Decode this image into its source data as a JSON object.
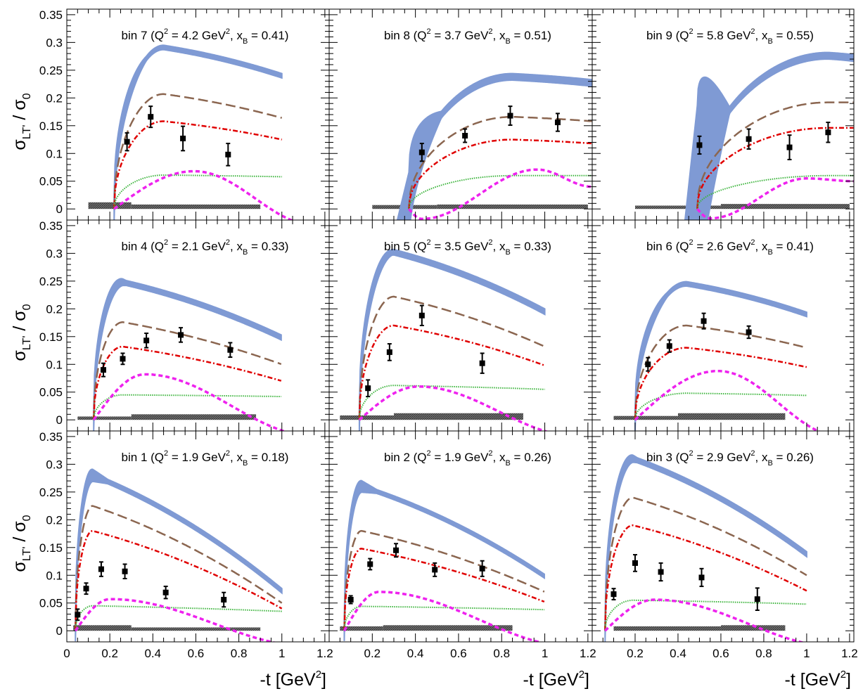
{
  "figure": {
    "ylabel_main": "σ",
    "ylabel_sub": "LT'",
    "ylabel_sep": " / σ",
    "ylabel_sub2": "0",
    "xlabel_main": "-t [GeV",
    "xlabel_sup": "2",
    "xlabel_end": "]"
  },
  "chart_data": [
    {
      "type": "line",
      "bin": "bin 7",
      "Q2": "4.2",
      "xB": "0.41",
      "title_a": "bin 7 (Q",
      "title_b": " = 4.2 GeV",
      "title_c": ", x",
      "title_d": " = 0.41)",
      "xlim": [
        0,
        1.22
      ],
      "ylim": [
        -0.02,
        0.36
      ],
      "tmin": 0.22,
      "tpeak": 0.45,
      "points": [
        {
          "t": 0.28,
          "y": 0.121,
          "err": 0.016
        },
        {
          "t": 0.39,
          "y": 0.166,
          "err": 0.019
        },
        {
          "t": 0.54,
          "y": 0.127,
          "err": 0.022
        },
        {
          "t": 0.75,
          "y": 0.098,
          "err": 0.02
        }
      ],
      "model_band": {
        "peak": 0.291,
        "end": 0.24,
        "w": 0.008,
        "tip_w": 0.012
      },
      "model_dashed": {
        "peak": 0.207,
        "end": 0.164
      },
      "model_dashdot": {
        "peak": 0.158,
        "end": 0.125
      },
      "model_dotted": {
        "peak": 0.061,
        "end": 0.058
      },
      "model_short": {
        "peak": 0.068,
        "end": -0.03
      },
      "syst": [
        {
          "t0": 0.1,
          "t1": 0.3,
          "h": 0.012
        },
        {
          "t0": 0.3,
          "t1": 0.9,
          "h": 0.008
        }
      ]
    },
    {
      "type": "line",
      "bin": "bin 8",
      "Q2": "3.7",
      "xB": "0.51",
      "title_a": "bin 8 (Q",
      "title_b": " = 3.7 GeV",
      "title_c": ", x",
      "title_d": " = 0.51)",
      "xlim": [
        0,
        1.22
      ],
      "ylim": [
        -0.02,
        0.36
      ],
      "tmin": 0.37,
      "tpeak": 0.85,
      "points": [
        {
          "t": 0.43,
          "y": 0.102,
          "err": 0.016
        },
        {
          "t": 0.63,
          "y": 0.132,
          "err": 0.012
        },
        {
          "t": 0.84,
          "y": 0.168,
          "err": 0.017
        },
        {
          "t": 1.06,
          "y": 0.156,
          "err": 0.016
        }
      ],
      "model_band": {
        "peak": 0.238,
        "end": 0.227,
        "w": 0.012,
        "tip_w": 0.04
      },
      "model_dashed": {
        "peak": 0.166,
        "end": 0.158
      },
      "model_dashdot": {
        "peak": 0.125,
        "end": 0.118
      },
      "model_dotted": {
        "peak": 0.06,
        "end": 0.06
      },
      "model_short": {
        "peak": 0.071,
        "end": 0.04,
        "dip": -0.018
      },
      "syst": [
        {
          "t0": 0.2,
          "t1": 0.5,
          "h": 0.007
        },
        {
          "t0": 0.5,
          "t1": 1.2,
          "h": 0.008
        }
      ]
    },
    {
      "type": "line",
      "bin": "bin 9",
      "Q2": "5.8",
      "xB": "0.55",
      "title_a": "bin 9 (Q",
      "title_b": " = 5.8 GeV",
      "title_c": ", x",
      "title_d": " = 0.55)",
      "xlim": [
        0,
        1.22
      ],
      "ylim": [
        -0.02,
        0.36
      ],
      "tmin": 0.49,
      "tpeak": 1.1,
      "points": [
        {
          "t": 0.5,
          "y": 0.115,
          "err": 0.016
        },
        {
          "t": 0.73,
          "y": 0.126,
          "err": 0.018
        },
        {
          "t": 0.92,
          "y": 0.111,
          "err": 0.022
        },
        {
          "t": 1.1,
          "y": 0.138,
          "err": 0.018
        }
      ],
      "model_band": {
        "peak": 0.276,
        "end": 0.272,
        "w": 0.012,
        "tip_w": 0.12
      },
      "model_dashed": {
        "peak": 0.192,
        "end": 0.192
      },
      "model_dashdot": {
        "peak": 0.146,
        "end": 0.146
      },
      "model_dotted": {
        "peak": 0.06,
        "end": 0.06
      },
      "model_short": {
        "peak": 0.055,
        "end": 0.05,
        "dip": -0.017
      },
      "syst": [
        {
          "t0": 0.2,
          "t1": 0.6,
          "h": 0.006
        },
        {
          "t0": 0.6,
          "t1": 1.2,
          "h": 0.009
        }
      ]
    },
    {
      "type": "line",
      "bin": "bin 4",
      "Q2": "2.1",
      "xB": "0.33",
      "title_a": "bin 4 (Q",
      "title_b": " = 2.1 GeV",
      "title_c": ", x",
      "title_d": " = 0.33)",
      "xlim": [
        0,
        1.22
      ],
      "ylim": [
        -0.02,
        0.36
      ],
      "tmin": 0.125,
      "tpeak": 0.26,
      "points": [
        {
          "t": 0.17,
          "y": 0.09,
          "err": 0.012
        },
        {
          "t": 0.26,
          "y": 0.11,
          "err": 0.01
        },
        {
          "t": 0.37,
          "y": 0.143,
          "err": 0.013
        },
        {
          "t": 0.53,
          "y": 0.153,
          "err": 0.013
        },
        {
          "t": 0.76,
          "y": 0.126,
          "err": 0.013
        }
      ],
      "model_band": {
        "peak": 0.248,
        "end": 0.148,
        "w": 0.009,
        "tip_w": 0.01
      },
      "model_dashed": {
        "peak": 0.176,
        "end": 0.1
      },
      "model_dashdot": {
        "peak": 0.132,
        "end": 0.07
      },
      "model_dotted": {
        "peak": 0.045,
        "end": 0.042
      },
      "model_short": {
        "peak": 0.082,
        "end": -0.03
      },
      "syst": [
        {
          "t0": 0.05,
          "t1": 0.3,
          "h": 0.006
        },
        {
          "t0": 0.3,
          "t1": 0.88,
          "h": 0.01
        }
      ]
    },
    {
      "type": "line",
      "bin": "bin 5",
      "Q2": "3.5",
      "xB": "0.33",
      "title_a": "bin 5 (Q",
      "title_b": " = 3.5 GeV",
      "title_c": ", x",
      "title_d": " = 0.33)",
      "xlim": [
        0,
        1.22
      ],
      "ylim": [
        -0.02,
        0.36
      ],
      "tmin": 0.14,
      "tpeak": 0.3,
      "points": [
        {
          "t": 0.18,
          "y": 0.057,
          "err": 0.015
        },
        {
          "t": 0.28,
          "y": 0.122,
          "err": 0.015
        },
        {
          "t": 0.43,
          "y": 0.188,
          "err": 0.018
        },
        {
          "t": 0.71,
          "y": 0.102,
          "err": 0.018
        }
      ],
      "model_band": {
        "peak": 0.302,
        "end": 0.195,
        "w": 0.01,
        "tip_w": 0.01
      },
      "model_dashed": {
        "peak": 0.222,
        "end": 0.132
      },
      "model_dashdot": {
        "peak": 0.17,
        "end": 0.098
      },
      "model_dotted": {
        "peak": 0.062,
        "end": 0.055
      },
      "model_short": {
        "peak": 0.06,
        "end": -0.03
      },
      "syst": [
        {
          "t0": 0.05,
          "t1": 0.3,
          "h": 0.008
        },
        {
          "t0": 0.3,
          "t1": 0.9,
          "h": 0.012
        }
      ]
    },
    {
      "type": "line",
      "bin": "bin 6",
      "Q2": "2.6",
      "xB": "0.41",
      "title_a": "bin 6 (Q",
      "title_b": " = 2.6 GeV",
      "title_c": ", x",
      "title_d": " = 0.41)",
      "xlim": [
        0,
        1.22
      ],
      "ylim": [
        -0.02,
        0.36
      ],
      "tmin": 0.2,
      "tpeak": 0.44,
      "points": [
        {
          "t": 0.26,
          "y": 0.1,
          "err": 0.012
        },
        {
          "t": 0.36,
          "y": 0.133,
          "err": 0.011
        },
        {
          "t": 0.52,
          "y": 0.178,
          "err": 0.014
        },
        {
          "t": 0.73,
          "y": 0.158,
          "err": 0.011
        }
      ],
      "model_band": {
        "peak": 0.245,
        "end": 0.19,
        "w": 0.008,
        "tip_w": 0.01
      },
      "model_dashed": {
        "peak": 0.17,
        "end": 0.13
      },
      "model_dashdot": {
        "peak": 0.13,
        "end": 0.095
      },
      "model_dotted": {
        "peak": 0.048,
        "end": 0.044
      },
      "model_short": {
        "peak": 0.088,
        "end": -0.03
      },
      "syst": [
        {
          "t0": 0.1,
          "t1": 0.4,
          "h": 0.007
        },
        {
          "t0": 0.4,
          "t1": 0.9,
          "h": 0.012
        }
      ]
    },
    {
      "type": "line",
      "bin": "bin 1",
      "Q2": "1.9",
      "xB": "0.18",
      "title_a": "bin 1 (Q",
      "title_b": " = 1.9 GeV",
      "title_c": ", x",
      "title_d": " = 0.18)",
      "xlim": [
        0,
        1.22
      ],
      "ylim": [
        -0.02,
        0.36
      ],
      "tmin": 0.04,
      "tpeak": 0.12,
      "points": [
        {
          "t": 0.05,
          "y": 0.029,
          "err": 0.01
        },
        {
          "t": 0.09,
          "y": 0.076,
          "err": 0.01
        },
        {
          "t": 0.16,
          "y": 0.111,
          "err": 0.013
        },
        {
          "t": 0.27,
          "y": 0.107,
          "err": 0.013
        },
        {
          "t": 0.46,
          "y": 0.069,
          "err": 0.011
        },
        {
          "t": 0.73,
          "y": 0.056,
          "err": 0.013
        }
      ],
      "model_band": {
        "peak": 0.28,
        "end": 0.072,
        "w": 0.008,
        "tip_w": 0.01
      },
      "model_dashed": {
        "peak": 0.225,
        "end": 0.05
      },
      "model_dashdot": {
        "peak": 0.18,
        "end": 0.04
      },
      "model_dotted": {
        "peak": 0.045,
        "end": 0.035
      },
      "model_short": {
        "peak": 0.057,
        "end": -0.03
      },
      "syst": [
        {
          "t0": 0.03,
          "t1": 0.3,
          "h": 0.01
        },
        {
          "t0": 0.3,
          "t1": 0.9,
          "h": 0.006
        }
      ]
    },
    {
      "type": "line",
      "bin": "bin 2",
      "Q2": "1.9",
      "xB": "0.26",
      "title_a": "bin 2 (Q",
      "title_b": " = 1.9 GeV",
      "title_c": ", x",
      "title_d": " = 0.26)",
      "xlim": [
        0,
        1.22
      ],
      "ylim": [
        -0.02,
        0.36
      ],
      "tmin": 0.07,
      "tpeak": 0.15,
      "points": [
        {
          "t": 0.1,
          "y": 0.056,
          "err": 0.007
        },
        {
          "t": 0.19,
          "y": 0.12,
          "err": 0.01
        },
        {
          "t": 0.31,
          "y": 0.145,
          "err": 0.012
        },
        {
          "t": 0.49,
          "y": 0.11,
          "err": 0.012
        },
        {
          "t": 0.71,
          "y": 0.112,
          "err": 0.014
        }
      ],
      "model_band": {
        "peak": 0.26,
        "end": 0.098,
        "w": 0.007,
        "tip_w": 0.01
      },
      "model_dashed": {
        "peak": 0.18,
        "end": 0.07
      },
      "model_dashdot": {
        "peak": 0.148,
        "end": 0.052
      },
      "model_dotted": {
        "peak": 0.044,
        "end": 0.038
      },
      "model_short": {
        "peak": 0.07,
        "end": -0.03
      },
      "syst": [
        {
          "t0": 0.05,
          "t1": 0.25,
          "h": 0.008
        },
        {
          "t0": 0.25,
          "t1": 0.85,
          "h": 0.01
        }
      ]
    },
    {
      "type": "line",
      "bin": "bin 3",
      "Q2": "2.9",
      "xB": "0.26",
      "title_a": "bin 3 (Q",
      "title_b": " = 2.9 GeV",
      "title_c": ", x",
      "title_d": " = 0.26)",
      "xlim": [
        0,
        1.22
      ],
      "ylim": [
        -0.02,
        0.36
      ],
      "tmin": 0.06,
      "tpeak": 0.19,
      "points": [
        {
          "t": 0.1,
          "y": 0.066,
          "err": 0.01
        },
        {
          "t": 0.2,
          "y": 0.122,
          "err": 0.015
        },
        {
          "t": 0.32,
          "y": 0.106,
          "err": 0.016
        },
        {
          "t": 0.51,
          "y": 0.096,
          "err": 0.016
        },
        {
          "t": 0.77,
          "y": 0.057,
          "err": 0.02
        }
      ],
      "model_band": {
        "peak": 0.31,
        "end": 0.138,
        "w": 0.009,
        "tip_w": 0.01
      },
      "model_dashed": {
        "peak": 0.24,
        "end": 0.1
      },
      "model_dashdot": {
        "peak": 0.19,
        "end": 0.072
      },
      "model_dotted": {
        "peak": 0.055,
        "end": 0.048
      },
      "model_short": {
        "peak": 0.056,
        "end": -0.03
      },
      "syst": [
        {
          "t0": 0.1,
          "t1": 0.6,
          "h": 0.008
        },
        {
          "t0": 0.6,
          "t1": 0.9,
          "h": 0.01
        }
      ]
    }
  ],
  "axes": {
    "yticks": [
      "0",
      "0.05",
      "0.1",
      "0.15",
      "0.2",
      "0.25",
      "0.3",
      "0.35"
    ],
    "xticks": [
      "0",
      "0.2",
      "0.4",
      "0.6",
      "0.8",
      "1",
      "1.2"
    ]
  },
  "colors": {
    "band": "#7f9ad4",
    "dashed": "#8b6650",
    "dashdot": "#e00000",
    "dotted": "#3cb43c",
    "short": "#ee22ee",
    "syst": "#555555",
    "point": "#000000"
  }
}
